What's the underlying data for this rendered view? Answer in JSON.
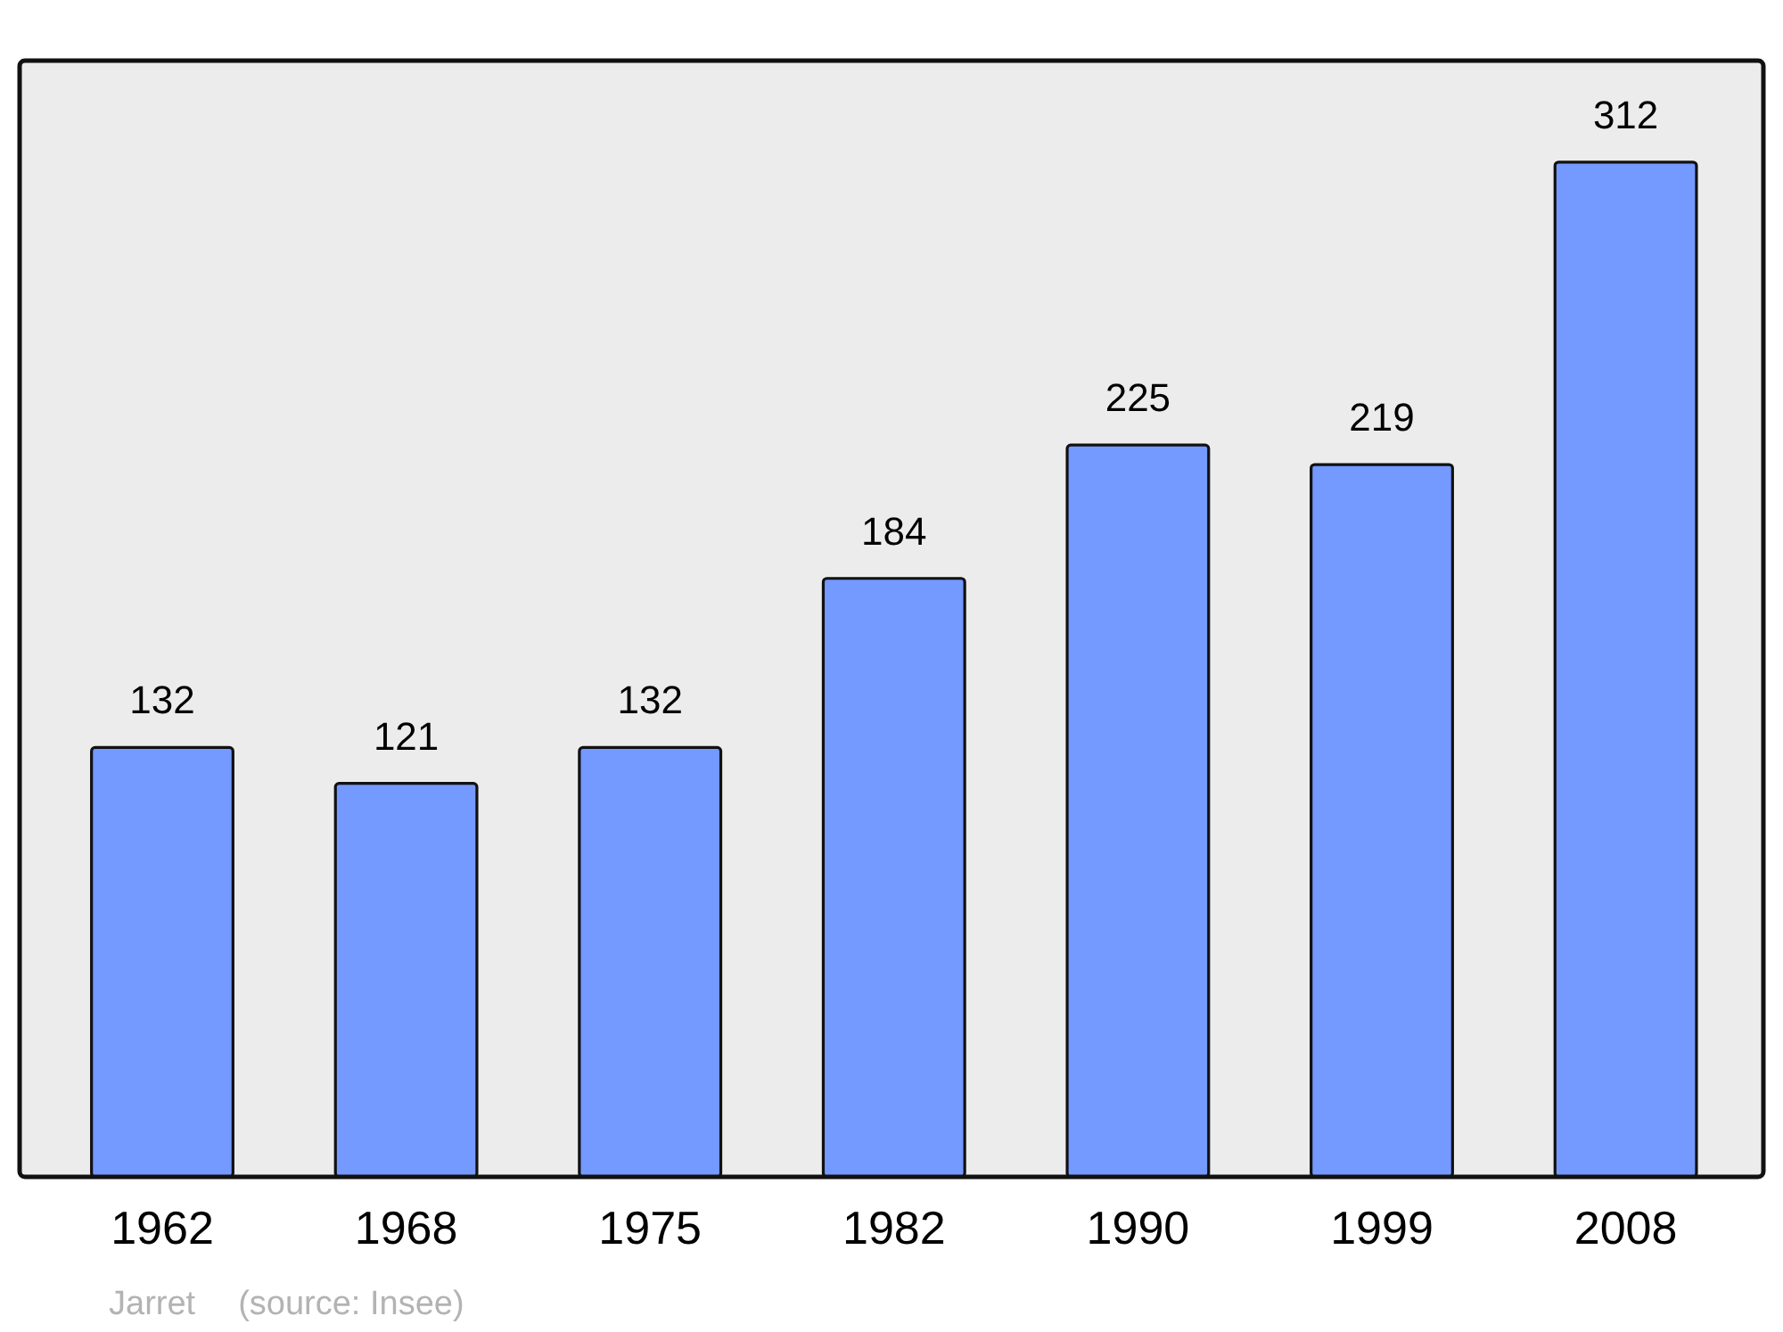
{
  "chart_data": {
    "type": "bar",
    "categories": [
      "1962",
      "1968",
      "1975",
      "1982",
      "1990",
      "1999",
      "2008"
    ],
    "values": [
      132,
      121,
      132,
      184,
      225,
      219,
      312
    ],
    "color": "#7499ff",
    "data_labels": true,
    "tick_labels": "x",
    "annotations": [
      "Jarret",
      "(source: Insee)"
    ]
  }
}
